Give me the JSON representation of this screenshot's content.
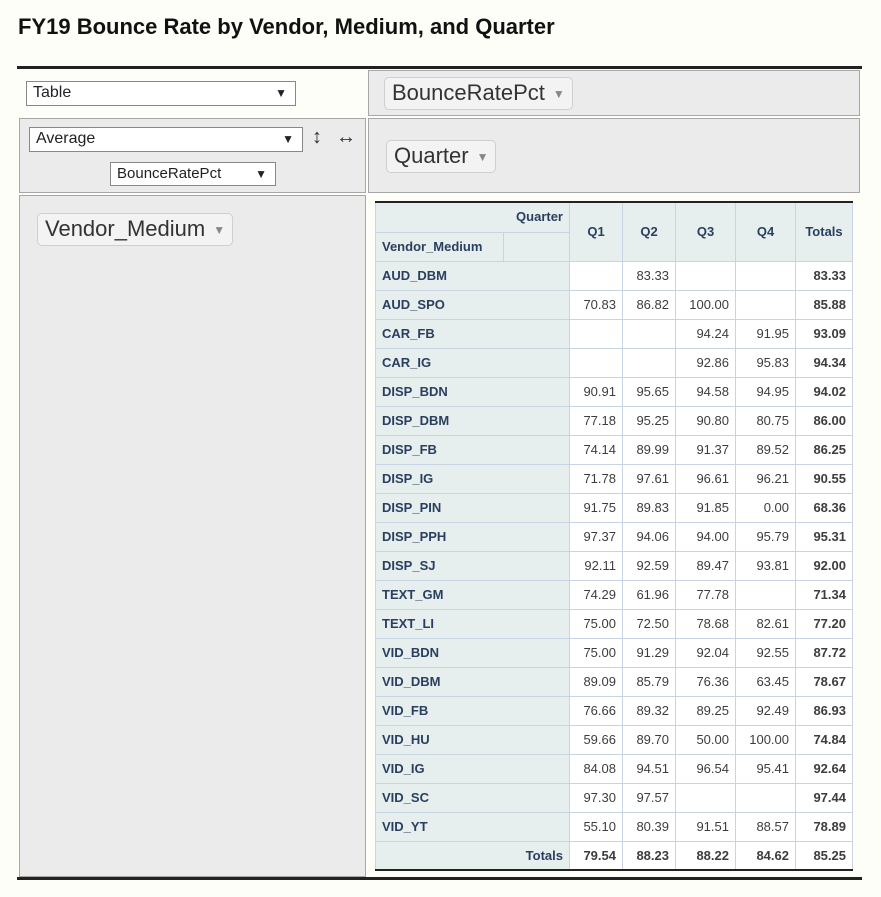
{
  "title": "FY19 Bounce Rate by Vendor, Medium, and Quarter",
  "controls": {
    "renderer": "Table",
    "aggregator": "Average",
    "aggregator_attr": "BounceRatePct",
    "arrow_glyph": "▼",
    "pill_arrow_glyph": "▼",
    "sort_rows_glyph": "↕",
    "sort_cols_glyph": "↔"
  },
  "pivot": {
    "unused_attr": "BounceRatePct",
    "col_attr": "Quarter",
    "row_attr": "Vendor_Medium"
  },
  "table": {
    "col_header_label": "Quarter",
    "row_header_label": "Vendor_Medium",
    "columns": [
      "Q1",
      "Q2",
      "Q3",
      "Q4"
    ],
    "totals_label": "Totals",
    "rows": [
      {
        "label": "AUD_DBM",
        "values": [
          "",
          "83.33",
          "",
          ""
        ],
        "total": "83.33"
      },
      {
        "label": "AUD_SPO",
        "values": [
          "70.83",
          "86.82",
          "100.00",
          ""
        ],
        "total": "85.88"
      },
      {
        "label": "CAR_FB",
        "values": [
          "",
          "",
          "94.24",
          "91.95"
        ],
        "total": "93.09"
      },
      {
        "label": "CAR_IG",
        "values": [
          "",
          "",
          "92.86",
          "95.83"
        ],
        "total": "94.34"
      },
      {
        "label": "DISP_BDN",
        "values": [
          "90.91",
          "95.65",
          "94.58",
          "94.95"
        ],
        "total": "94.02"
      },
      {
        "label": "DISP_DBM",
        "values": [
          "77.18",
          "95.25",
          "90.80",
          "80.75"
        ],
        "total": "86.00"
      },
      {
        "label": "DISP_FB",
        "values": [
          "74.14",
          "89.99",
          "91.37",
          "89.52"
        ],
        "total": "86.25"
      },
      {
        "label": "DISP_IG",
        "values": [
          "71.78",
          "97.61",
          "96.61",
          "96.21"
        ],
        "total": "90.55"
      },
      {
        "label": "DISP_PIN",
        "values": [
          "91.75",
          "89.83",
          "91.85",
          "0.00"
        ],
        "total": "68.36"
      },
      {
        "label": "DISP_PPH",
        "values": [
          "97.37",
          "94.06",
          "94.00",
          "95.79"
        ],
        "total": "95.31"
      },
      {
        "label": "DISP_SJ",
        "values": [
          "92.11",
          "92.59",
          "89.47",
          "93.81"
        ],
        "total": "92.00"
      },
      {
        "label": "TEXT_GM",
        "values": [
          "74.29",
          "61.96",
          "77.78",
          ""
        ],
        "total": "71.34"
      },
      {
        "label": "TEXT_LI",
        "values": [
          "75.00",
          "72.50",
          "78.68",
          "82.61"
        ],
        "total": "77.20"
      },
      {
        "label": "VID_BDN",
        "values": [
          "75.00",
          "91.29",
          "92.04",
          "92.55"
        ],
        "total": "87.72"
      },
      {
        "label": "VID_DBM",
        "values": [
          "89.09",
          "85.79",
          "76.36",
          "63.45"
        ],
        "total": "78.67"
      },
      {
        "label": "VID_FB",
        "values": [
          "76.66",
          "89.32",
          "89.25",
          "92.49"
        ],
        "total": "86.93"
      },
      {
        "label": "VID_HU",
        "values": [
          "59.66",
          "89.70",
          "50.00",
          "100.00"
        ],
        "total": "74.84"
      },
      {
        "label": "VID_IG",
        "values": [
          "84.08",
          "94.51",
          "96.54",
          "95.41"
        ],
        "total": "92.64"
      },
      {
        "label": "VID_SC",
        "values": [
          "97.30",
          "97.57",
          "",
          ""
        ],
        "total": "97.44"
      },
      {
        "label": "VID_YT",
        "values": [
          "55.10",
          "80.39",
          "91.51",
          "88.57"
        ],
        "total": "78.89"
      }
    ],
    "col_totals": [
      "79.54",
      "88.23",
      "88.22",
      "84.62"
    ],
    "grand_total": "85.25"
  }
}
